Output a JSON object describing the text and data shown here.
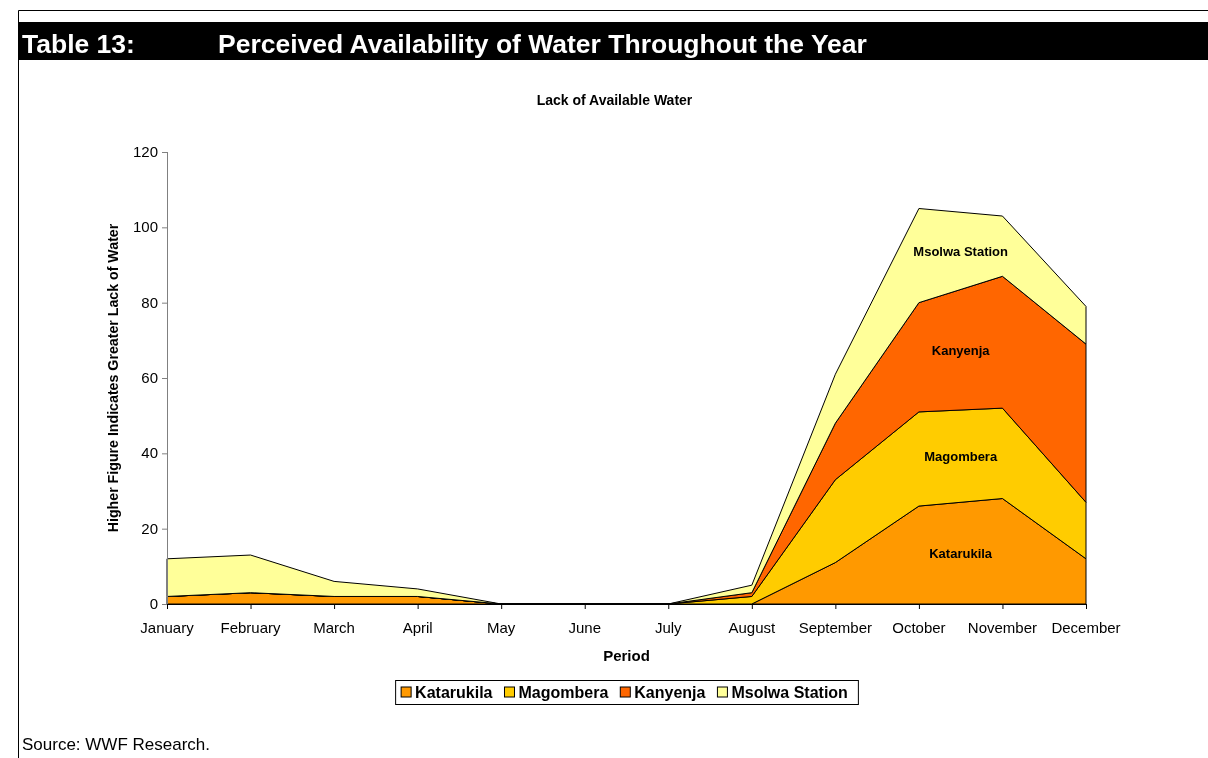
{
  "chart_data": {
    "type": "area",
    "stacked": true,
    "title": "Perceived Availability of Water Throughout the Year",
    "subtitle": "Lack of Available Water",
    "xlabel": "Period",
    "ylabel": "Higher Figure Indicates Greater Lack of Water",
    "categories": [
      "January",
      "February",
      "March",
      "April",
      "May",
      "June",
      "July",
      "August",
      "September",
      "October",
      "November",
      "December"
    ],
    "series": [
      {
        "name": "Katarukila",
        "color": "#ff9900",
        "values": [
          2,
          3,
          2,
          2,
          0,
          0,
          0,
          0,
          11,
          26,
          28,
          12
        ]
      },
      {
        "name": "Magombera",
        "color": "#ffcc00",
        "values": [
          0,
          0,
          0,
          0,
          0,
          0,
          0,
          2,
          22,
          25,
          24,
          15
        ]
      },
      {
        "name": "Kanyenja",
        "color": "#ff6600",
        "values": [
          0,
          0,
          0,
          0,
          0,
          0,
          0,
          1,
          15,
          29,
          35,
          42
        ]
      },
      {
        "name": "Msolwa Station",
        "color": "#ffff99",
        "values": [
          10,
          10,
          4,
          2,
          0,
          0,
          0,
          2,
          13,
          25,
          16,
          10
        ]
      }
    ],
    "ylim": [
      0,
      120
    ],
    "yticks": [
      0,
      20,
      40,
      60,
      80,
      100,
      120
    ],
    "legend": "bottom",
    "annotations": [
      "Table 13:",
      "Source: WWF Research."
    ]
  }
}
